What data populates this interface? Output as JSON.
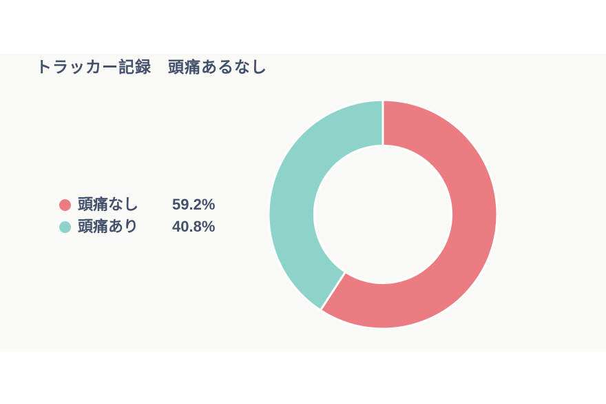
{
  "page": {
    "background": "#ffffff",
    "panel_background": "#fafaf7",
    "text_color": "#42506b"
  },
  "title": "トラッカー記録　頭痛あるなし",
  "legend": {
    "items": [
      {
        "label": "頭痛なし",
        "value": "59.2%",
        "color": "#ea7c82"
      },
      {
        "label": "頭痛あり",
        "value": "40.8%",
        "color": "#8ed3ca"
      }
    ]
  },
  "chart_data": {
    "type": "pie",
    "title": "トラッカー記録　頭痛あるなし",
    "categories": [
      "頭痛なし",
      "頭痛あり"
    ],
    "values": [
      59.2,
      40.8
    ],
    "unit": "%",
    "colors": [
      "#ea7c82",
      "#8ed3ca"
    ],
    "donut": true,
    "inner_radius_ratio": 0.6,
    "start_angle_deg": 0,
    "direction": "clockwise",
    "slice_gap_color": "#ffffff",
    "legend_position": "left"
  }
}
